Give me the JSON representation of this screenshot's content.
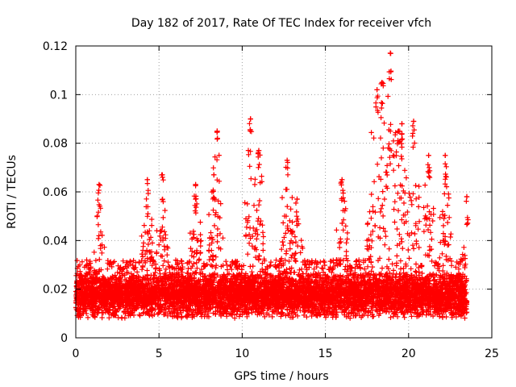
{
  "chart_data": {
    "type": "scatter",
    "title": "Day 182 of 2017, Rate Of TEC Index for receiver vfch",
    "xlabel": "GPS time / hours",
    "ylabel": "ROTI / TECUs",
    "xlim": [
      0,
      25
    ],
    "ylim": [
      0,
      0.12
    ],
    "x_ticks": [
      "0",
      "5",
      "10",
      "15",
      "20",
      "25"
    ],
    "y_ticks": [
      "0",
      "0.02",
      "0.04",
      "0.06",
      "0.08",
      "0.1",
      "0.12"
    ],
    "x_tick_values": [
      0,
      5,
      10,
      15,
      20,
      25
    ],
    "y_tick_values": [
      0,
      0.02,
      0.04,
      0.06,
      0.08,
      0.1,
      0.12
    ],
    "grid": true,
    "marker": "+",
    "color": "#ff0000",
    "x_extent_hours": [
      0,
      23.5
    ],
    "baseline_band": [
      0.008,
      0.028
    ],
    "peaks": [
      {
        "x": 1.4,
        "y": 0.063
      },
      {
        "x": 4.3,
        "y": 0.065
      },
      {
        "x": 5.2,
        "y": 0.067
      },
      {
        "x": 7.2,
        "y": 0.063
      },
      {
        "x": 8.3,
        "y": 0.067
      },
      {
        "x": 8.5,
        "y": 0.085
      },
      {
        "x": 10.5,
        "y": 0.09
      },
      {
        "x": 11.0,
        "y": 0.077
      },
      {
        "x": 12.7,
        "y": 0.073
      },
      {
        "x": 13.3,
        "y": 0.057
      },
      {
        "x": 16.0,
        "y": 0.065
      },
      {
        "x": 18.1,
        "y": 0.102
      },
      {
        "x": 18.4,
        "y": 0.105
      },
      {
        "x": 18.9,
        "y": 0.117
      },
      {
        "x": 19.4,
        "y": 0.085
      },
      {
        "x": 19.6,
        "y": 0.088
      },
      {
        "x": 20.3,
        "y": 0.089
      },
      {
        "x": 21.2,
        "y": 0.075
      },
      {
        "x": 22.2,
        "y": 0.075
      },
      {
        "x": 23.5,
        "y": 0.058
      }
    ]
  }
}
